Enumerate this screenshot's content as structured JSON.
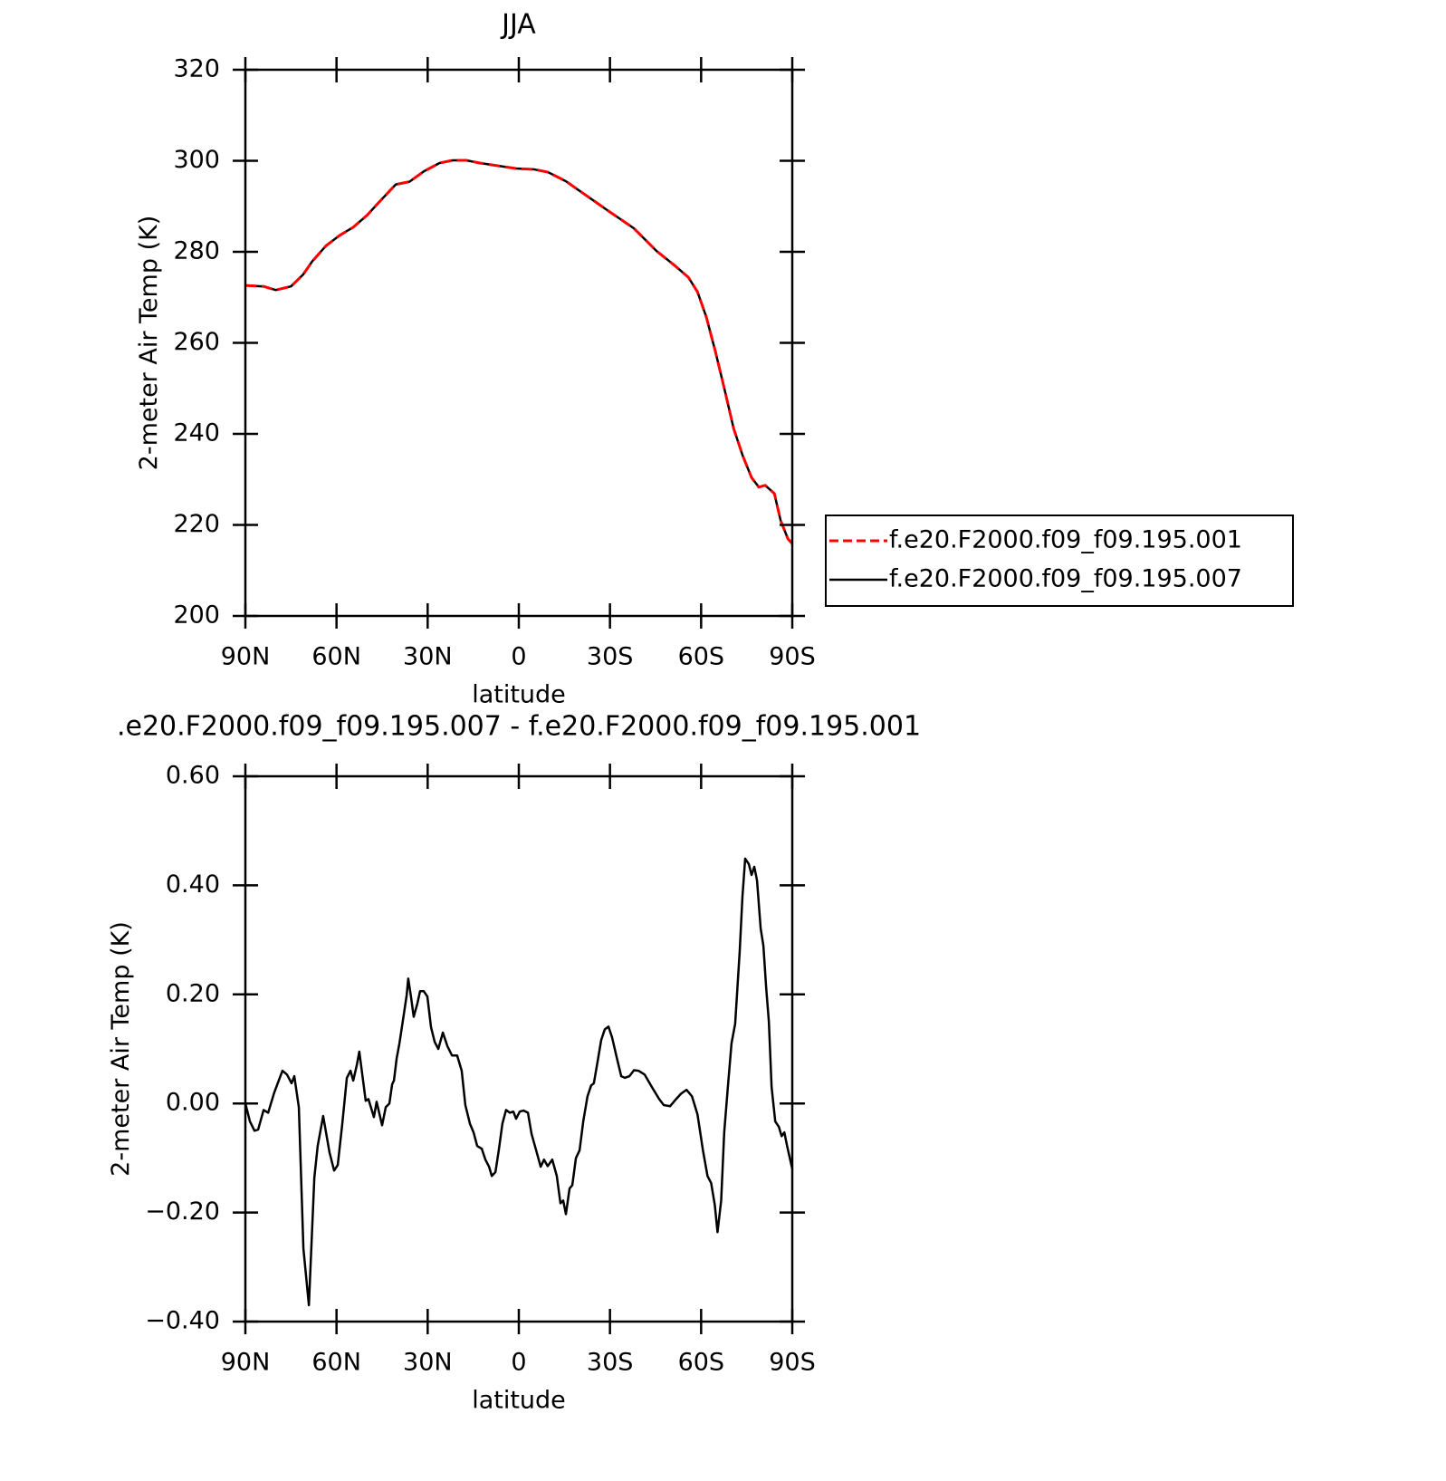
{
  "chart_data": [
    {
      "type": "line",
      "title": "JJA",
      "xlabel": "latitude",
      "ylabel": "2-meter Air Temp (K)",
      "x": [
        90,
        84,
        80,
        75,
        71,
        68,
        63.5,
        59,
        54.5,
        50,
        45.6,
        40.5,
        36,
        31.2,
        26.1,
        21.8,
        17.3,
        12.8,
        6.9,
        0.9,
        -5.1,
        -9.6,
        -15.5,
        -21.5,
        -29,
        -37.8,
        -45.3,
        -51.3,
        -55.8,
        -58.8,
        -61.7,
        -64.7,
        -67.7,
        -70.7,
        -73.7,
        -76.6,
        -79,
        -81.1,
        -84.1,
        -86.2,
        -88.6,
        -90
      ],
      "series": [
        {
          "name": "f.e20.F2000.f09_f09.195.001",
          "color": "#ff0000",
          "style": "dashed",
          "values": [
            272.6,
            272.4,
            271.6,
            272.4,
            275.0,
            277.9,
            281.3,
            283.6,
            285.4,
            288.0,
            291.2,
            294.8,
            295.4,
            297.7,
            299.5,
            300.1,
            300.1,
            299.5,
            298.9,
            298.3,
            298.1,
            297.5,
            295.5,
            292.7,
            289.2,
            285.2,
            280.2,
            277.0,
            274.4,
            271.2,
            265.7,
            258.1,
            249.8,
            241.2,
            235.2,
            230.4,
            228.3,
            228.7,
            226.9,
            220.9,
            216.9,
            215.9
          ]
        },
        {
          "name": "f.e20.F2000.f09_f09.195.007",
          "color": "#000000",
          "style": "solid",
          "values": [
            272.6,
            272.4,
            271.6,
            272.4,
            275.0,
            277.9,
            281.3,
            283.6,
            285.4,
            288.0,
            291.2,
            294.8,
            295.4,
            297.7,
            299.5,
            300.1,
            300.1,
            299.5,
            298.9,
            298.3,
            298.1,
            297.5,
            295.5,
            292.7,
            289.2,
            285.2,
            280.2,
            277.0,
            274.4,
            271.2,
            265.7,
            258.1,
            249.8,
            241.2,
            235.2,
            230.4,
            228.3,
            228.7,
            226.9,
            220.9,
            216.9,
            215.9
          ]
        }
      ],
      "xlim": [
        90,
        -90
      ],
      "xticks": [
        {
          "value": 90,
          "label": "90N"
        },
        {
          "value": 60,
          "label": "60N"
        },
        {
          "value": 30,
          "label": "30N"
        },
        0,
        {
          "value": -30,
          "label": "30S"
        },
        {
          "value": -60,
          "label": "60S"
        },
        {
          "value": -90,
          "label": "90S"
        }
      ],
      "ylim": [
        200,
        320
      ],
      "yticks": [
        200,
        220,
        240,
        260,
        280,
        300,
        320
      ],
      "legend": "right"
    },
    {
      "type": "line",
      "title": ".e20.F2000.f09_f09.195.007 - f.e20.F2000.f09_f09.195.001",
      "xlabel": "latitude",
      "ylabel": "2-meter Air Temp (K)",
      "x": [
        90,
        88.5,
        87,
        85.8,
        84,
        82.5,
        80.5,
        77.8,
        76.3,
        74.8,
        73.9,
        72.4,
        70.9,
        69.1,
        67.3,
        66.2,
        64.4,
        62.3,
        60.8,
        59.6,
        58.1,
        56.6,
        55.4,
        54.5,
        53.3,
        52.5,
        50.4,
        49.5,
        47.7,
        46.8,
        45,
        43.8,
        42.6,
        41.7,
        41.1,
        40.2,
        39.3,
        38.1,
        36.9,
        36.4,
        35.5,
        34.6,
        33.4,
        32.5,
        31.3,
        30.1,
        28.9,
        27.7,
        26.5,
        25,
        23.5,
        22,
        20.3,
        18.8,
        17.6,
        16.1,
        14.9,
        13.7,
        12.2,
        11,
        9.8,
        8.9,
        7.7,
        6.6,
        5.4,
        4.2,
        3,
        1.8,
        0.9,
        -0.3,
        -1.5,
        -3,
        -4.2,
        -5.7,
        -7.2,
        -8.3,
        -9.5,
        -11,
        -12.5,
        -13.7,
        -14.6,
        -15.5,
        -16.7,
        -17.6,
        -18.8,
        -20,
        -21.2,
        -22.6,
        -23.8,
        -24.7,
        -25.9,
        -27.1,
        -28.3,
        -29.5,
        -30.7,
        -32.2,
        -33.7,
        -34.9,
        -36.4,
        -37.9,
        -39.4,
        -41.4,
        -43.8,
        -46.2,
        -47.7,
        -49.8,
        -51.6,
        -53.4,
        -55.2,
        -57,
        -58.8,
        -60.6,
        -62.1,
        -63.3,
        -64.5,
        -65.4,
        -66.6,
        -67.6,
        -68.8,
        -70,
        -71.2,
        -72.7,
        -73.6,
        -74.5,
        -75.7,
        -76.6,
        -77.5,
        -78.4,
        -79.6,
        -80.5,
        -81.4,
        -82.3,
        -83.2,
        -84.4,
        -85.6,
        -86.5,
        -87.4,
        -88.3,
        -90
      ],
      "series": [
        {
          "color": "#000000",
          "style": "solid",
          "values": [
            0,
            -0.033,
            -0.05,
            -0.048,
            -0.012,
            -0.017,
            0.02,
            0.06,
            0.053,
            0.037,
            0.05,
            -0.007,
            -0.266,
            -0.37,
            -0.136,
            -0.078,
            -0.023,
            -0.09,
            -0.123,
            -0.113,
            -0.037,
            0.047,
            0.06,
            0.042,
            0.071,
            0.095,
            0.005,
            0.008,
            -0.025,
            0.003,
            -0.04,
            -0.007,
            0,
            0.035,
            0.042,
            0.083,
            0.11,
            0.154,
            0.199,
            0.229,
            0.196,
            0.159,
            0.183,
            0.206,
            0.206,
            0.196,
            0.14,
            0.113,
            0.1,
            0.13,
            0.105,
            0.088,
            0.088,
            0.06,
            -0.003,
            -0.037,
            -0.053,
            -0.078,
            -0.083,
            -0.103,
            -0.116,
            -0.133,
            -0.126,
            -0.086,
            -0.037,
            -0.012,
            -0.017,
            -0.015,
            -0.028,
            -0.015,
            -0.013,
            -0.017,
            -0.056,
            -0.086,
            -0.116,
            -0.103,
            -0.115,
            -0.103,
            -0.133,
            -0.183,
            -0.178,
            -0.203,
            -0.156,
            -0.15,
            -0.1,
            -0.086,
            -0.033,
            0.013,
            0.033,
            0.037,
            0.076,
            0.116,
            0.136,
            0.141,
            0.121,
            0.085,
            0.05,
            0.047,
            0.05,
            0.061,
            0.06,
            0.053,
            0.03,
            0.008,
            -0.003,
            -0.005,
            0.007,
            0.018,
            0.025,
            0.013,
            -0.02,
            -0.086,
            -0.133,
            -0.146,
            -0.186,
            -0.236,
            -0.178,
            -0.053,
            0.03,
            0.11,
            0.146,
            0.279,
            0.379,
            0.449,
            0.439,
            0.419,
            0.434,
            0.409,
            0.321,
            0.289,
            0.213,
            0.15,
            0.03,
            -0.033,
            -0.043,
            -0.06,
            -0.053,
            -0.078,
            -0.12
          ]
        }
      ],
      "xlim": [
        90,
        -90
      ],
      "xticks": [
        {
          "value": 90,
          "label": "90N"
        },
        {
          "value": 60,
          "label": "60N"
        },
        {
          "value": 30,
          "label": "30N"
        },
        0,
        {
          "value": -30,
          "label": "30S"
        },
        {
          "value": -60,
          "label": "60S"
        },
        {
          "value": -90,
          "label": "90S"
        }
      ],
      "ylim": [
        -0.4,
        0.6
      ],
      "yticks": [
        {
          "value": -0.4,
          "label": "−0.40"
        },
        {
          "value": -0.2,
          "label": "−0.20"
        },
        {
          "value": 0,
          "label": "0.00"
        },
        {
          "value": 0.2,
          "label": "0.20"
        },
        {
          "value": 0.4,
          "label": "0.40"
        },
        {
          "value": 0.6,
          "label": "0.60"
        }
      ]
    }
  ]
}
